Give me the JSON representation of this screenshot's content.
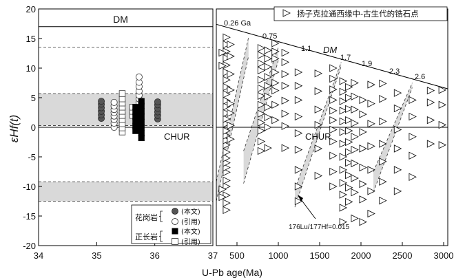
{
  "chart_data": [
    {
      "type": "scatter",
      "panel": "left",
      "ylabel": "εHf(t)",
      "ylim": [
        -20,
        20
      ],
      "yticks": [
        20,
        15,
        10,
        5,
        0,
        -5,
        -10,
        -15,
        -20
      ],
      "xlim": [
        34,
        37
      ],
      "xticks": [
        34,
        35,
        36,
        37
      ],
      "reference_lines": [
        {
          "name": "DM",
          "y": 17
        },
        {
          "name": "CHUR",
          "y": 0
        }
      ],
      "dashed_lines_y": [
        13.5,
        5.7,
        0.3,
        -9.2,
        -12.5
      ],
      "shaded_bands": [
        [
          0.3,
          5.7
        ],
        [
          -12.5,
          -9.2
        ]
      ],
      "legend": {
        "groups": [
          {
            "label": "花岗岩",
            "entries": [
              "(本文)",
              "(引用)"
            ],
            "markers": [
              "filled-circle",
              "open-circle"
            ]
          },
          {
            "label": "正长岩",
            "entries": [
              "(本文)",
              "(引用)"
            ],
            "markers": [
              "filled-square",
              "open-square"
            ]
          }
        ]
      },
      "series": [
        {
          "name": "花岗岩(本文)",
          "marker": "filled-circle",
          "color": "#555555",
          "x": 35.08,
          "values": [
            1.5,
            2.1,
            2.7,
            3.3,
            3.9,
            4.4
          ]
        },
        {
          "name": "花岗岩(本文)",
          "marker": "filled-circle",
          "color": "#555555",
          "x": 36.05,
          "values": [
            1.4,
            2.0,
            2.6,
            3.2,
            3.8,
            4.3
          ]
        },
        {
          "name": "花岗岩(引用)",
          "marker": "open-circle",
          "color": "#333333",
          "x": 35.3,
          "values": [
            0.0,
            0.7,
            1.3,
            1.9,
            2.5,
            3.0,
            3.6,
            4.2
          ]
        },
        {
          "name": "花岗岩(引用)",
          "marker": "open-circle",
          "color": "#333333",
          "x": 35.73,
          "values": [
            0.5,
            1.2,
            1.8,
            2.4,
            3.0,
            3.6,
            4.2,
            4.8,
            5.4,
            6.1,
            6.9,
            7.6,
            8.5
          ]
        },
        {
          "name": "正长岩(引用)",
          "marker": "open-square",
          "color": "#333333",
          "x": 35.44,
          "values": [
            -0.8,
            -0.1,
            0.6,
            1.3,
            2.0,
            2.7,
            3.4,
            4.1,
            4.8,
            5.7
          ]
        },
        {
          "name": "正长岩(引用)",
          "marker": "open-square",
          "color": "#333333",
          "x": 35.62,
          "values": [
            2.0,
            2.7,
            3.4
          ]
        },
        {
          "name": "正长岩(本文)",
          "marker": "filled-square",
          "color": "#000000",
          "x": 35.67,
          "values": [
            -0.6,
            0.2,
            1.0,
            1.8,
            2.6,
            3.4
          ]
        },
        {
          "name": "正长岩(本文)",
          "marker": "filled-square",
          "color": "#000000",
          "x": 35.77,
          "values": [
            -1.8,
            -1.0,
            0.0,
            0.9,
            1.8,
            2.7,
            3.6,
            4.4
          ]
        }
      ]
    },
    {
      "type": "scatter",
      "panel": "right",
      "xlabel": "U-Pb age(Ma)",
      "xlim": [
        250,
        3050
      ],
      "xticks": [
        500,
        1000,
        1500,
        2000,
        2500,
        3000
      ],
      "xtick_labels": [
        "500",
        "1000",
        "1500",
        "2000",
        "2500",
        "3000"
      ],
      "ylim": [
        -20,
        20
      ],
      "legend": {
        "marker": "open-triangle-right",
        "label": "扬子克拉通西缘中-古生代的锆石点"
      },
      "reference_lines": [
        {
          "name": "DM",
          "x": [
            250,
            3050
          ],
          "y": [
            17.4,
            6.5
          ]
        },
        {
          "name": "CHUR",
          "y": 0
        }
      ],
      "model_age_labels": [
        "0.26 Ga",
        "0.75",
        "1.1",
        "1.7",
        "1.9",
        "2.3",
        "2.6"
      ],
      "annotation": "176Lu/177Hf=0.015",
      "crustal_evolution_bands": [
        {
          "x": [
            250,
            640
          ],
          "y_upper": [
            -9.2,
            15.2
          ],
          "y_lower": [
            -12.5,
            12.0
          ]
        },
        {
          "x": [
            580,
            1000
          ],
          "y_upper": [
            -4.0,
            13.5
          ],
          "y_lower": [
            -9.5,
            11.3
          ]
        },
        {
          "x": [
            1200,
            1760
          ],
          "y_upper": [
            -10.5,
            11.0
          ],
          "y_lower": [
            -13.5,
            10.3
          ]
        },
        {
          "x": [
            2150,
            2620
          ],
          "y_upper": [
            -7.5,
            7.5
          ],
          "y_lower": [
            -11.0,
            6.7
          ]
        }
      ],
      "series": [
        {
          "name": "扬子克拉通西缘中-古生代的锆石点",
          "marker": "open-triangle-right",
          "clusters": [
            {
              "x": 370,
              "values": [
                -14.0,
                -12.8,
                -11.5,
                -10.0,
                -9.0,
                -7.6,
                -6.8,
                -6.0,
                -5.2,
                -4.2,
                -3.0,
                -2.2,
                -1.4,
                -0.6,
                0.6,
                1.4,
                2.4,
                3.5,
                4.5,
                5.6,
                6.8,
                8.0,
                9.3,
                10.5,
                11.7,
                12.8,
                14.0,
                15.2
              ]
            },
            {
              "x": 420,
              "values": [
                -2.0,
                0.3,
                2.4,
                4.0,
                6.3,
                9.0,
                12.0,
                14.0
              ]
            },
            {
              "x": 320,
              "values": [
                -10.5,
                -11.8,
                10.4,
                12.6
              ]
            },
            {
              "x": 790,
              "values": [
                -4.0,
                -2.4,
                -0.6,
                0.8,
                2.3,
                3.8,
                5.3,
                6.6,
                8.0,
                9.6,
                10.8,
                12.2,
                13.4
              ]
            },
            {
              "x": 870,
              "values": [
                -3.5,
                0.0,
                1.7,
                3.4,
                5.2,
                7.0,
                8.5,
                10.2,
                11.6,
                13.0
              ]
            },
            {
              "x": 960,
              "values": [
                1.2,
                3.8,
                6.2,
                7.5,
                9.3,
                11.6,
                12.8,
                14.2
              ]
            },
            {
              "x": 1080,
              "values": [
                -3.5,
                0.2,
                2.3,
                4.5,
                7.0,
                9.0,
                11.0,
                12.6
              ]
            },
            {
              "x": 1240,
              "values": [
                -12.5,
                -10.0,
                -7.2,
                -3.8,
                -1.0,
                1.8,
                4.6,
                7.0,
                9.3
              ]
            },
            {
              "x": 1480,
              "values": [
                -8.2,
                -3.6,
                0.4,
                3.0,
                6.1,
                9.1
              ]
            },
            {
              "x": 1660,
              "values": [
                -10.0,
                -7.5,
                -4.8,
                -2.4,
                -0.4,
                1.2,
                2.8,
                4.6,
                6.4,
                8.2,
                10.0
              ]
            },
            {
              "x": 1780,
              "values": [
                -16.0,
                -13.6,
                -11.4,
                -9.4,
                -7.2,
                -5.0,
                -2.8,
                -0.8,
                1.0,
                2.8,
                4.4,
                6.0,
                7.8
              ]
            },
            {
              "x": 1850,
              "values": [
                -12.6,
                -10.2,
                -8.1,
                -6.0,
                -4.2,
                -2.5,
                -0.6,
                1.2,
                3.1,
                5.0,
                6.8
              ]
            },
            {
              "x": 1920,
              "values": [
                -15.4,
                -11.0,
                -8.6,
                -6.1,
                -3.8,
                -1.6,
                0.7,
                3.0,
                5.2,
                7.5
              ]
            },
            {
              "x": 2020,
              "values": [
                -16.0,
                -12.2,
                -9.6,
                -6.8,
                -3.6,
                -0.8,
                2.2,
                4.6
              ]
            },
            {
              "x": 2120,
              "values": [
                -14.6,
                -10.8,
                -7.2,
                -3.2,
                0.6,
                4.0,
                7.2
              ]
            },
            {
              "x": 2260,
              "values": [
                -12.4,
                -9.2,
                -5.8,
                -2.8,
                1.0,
                4.8,
                7.4
              ]
            },
            {
              "x": 2440,
              "values": [
                -10.8,
                -7.2,
                -3.6,
                -0.4,
                3.2,
                5.8
              ]
            },
            {
              "x": 2620,
              "values": [
                -8.4,
                -4.8,
                -1.6,
                1.8,
                4.6
              ]
            },
            {
              "x": 2840,
              "values": [
                -2.8,
                1.2,
                4.2,
                6.2
              ]
            },
            {
              "x": 2980,
              "values": [
                -3.0,
                0.4,
                3.8,
                6.3
              ]
            }
          ]
        }
      ]
    }
  ],
  "colors": {
    "band_fill": "#d9d9d9",
    "axis": "#000000",
    "marker_stroke": "#1a1a1a",
    "filled_circle": "#555555",
    "filled_square": "#000000"
  }
}
